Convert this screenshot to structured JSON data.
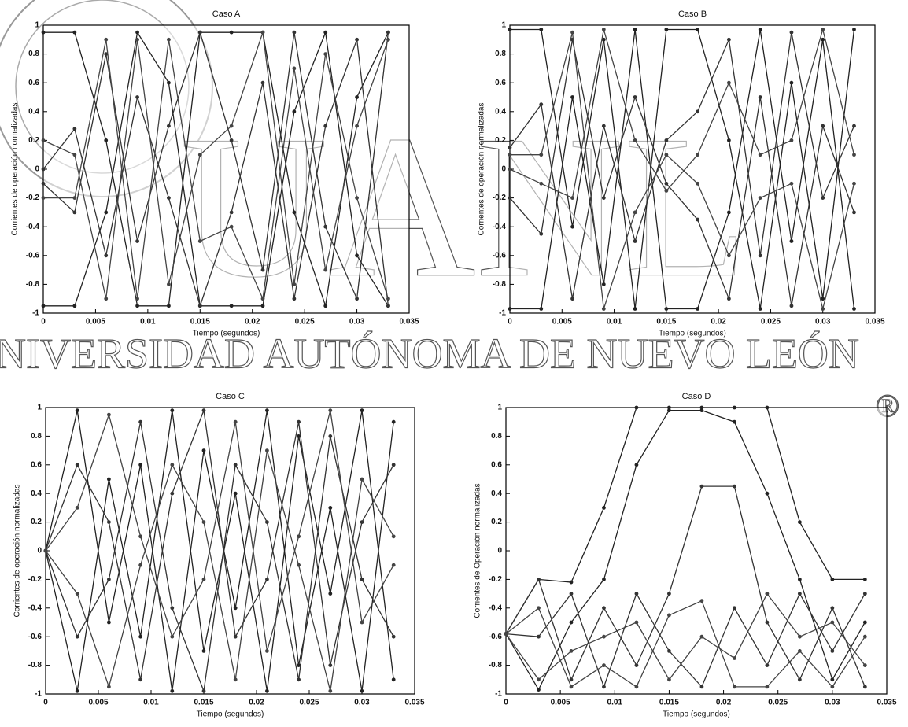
{
  "watermark": {
    "big": "UANL",
    "line": "NIVERSIDAD AUTÓNOMA DE NUEVO LEÓN",
    "mark": "®"
  },
  "chart_data": [
    {
      "type": "line",
      "title": "Caso A",
      "x_label": "Tiempo (segundos)",
      "y_label": "Corrientes de operación normalizadas",
      "x": [
        0,
        0.003,
        0.006,
        0.009,
        0.012,
        0.015,
        0.018,
        0.021,
        0.024,
        0.027,
        0.03,
        0.033
      ],
      "xlim": [
        0,
        0.035
      ],
      "xticks": [
        0,
        0.005,
        0.01,
        0.015,
        0.02,
        0.025,
        0.03,
        0.035
      ],
      "ylim": [
        -1,
        1
      ],
      "yticks": [
        -1,
        -0.8,
        -0.6,
        -0.4,
        -0.2,
        0,
        0.2,
        0.4,
        0.6,
        0.8,
        1
      ],
      "series": [
        {
          "color": "#222",
          "values": [
            0.95,
            0.95,
            0.2,
            -0.95,
            -0.95,
            0.95,
            0.95,
            0.95,
            -0.3,
            -0.95,
            0.5,
            0.95
          ]
        },
        {
          "color": "#222",
          "values": [
            -0.95,
            -0.95,
            -0.3,
            0.95,
            0.6,
            -0.95,
            -0.95,
            -0.95,
            0.4,
            0.95,
            -0.6,
            -0.95
          ]
        },
        {
          "color": "#333",
          "values": [
            0,
            0.28,
            -0.6,
            0.5,
            -0.2,
            -0.95,
            -0.3,
            0.6,
            -0.9,
            0.3,
            0.9,
            -0.95
          ]
        },
        {
          "color": "#333",
          "values": [
            -0.1,
            -0.3,
            0.8,
            -0.5,
            0.3,
            0.95,
            0.2,
            -0.7,
            0.95,
            -0.4,
            -0.9,
            0.95
          ]
        },
        {
          "color": "#444",
          "values": [
            0.2,
            0.1,
            -0.9,
            0.9,
            -0.8,
            0.1,
            0.3,
            0.95,
            -0.8,
            0.8,
            -0.2,
            -0.9
          ]
        },
        {
          "color": "#444",
          "values": [
            -0.2,
            -0.2,
            0.9,
            -0.9,
            0.9,
            -0.5,
            -0.4,
            -0.9,
            0.7,
            -0.7,
            0.3,
            0.9
          ]
        }
      ]
    },
    {
      "type": "line",
      "title": "Caso B",
      "x_label": "Tiempo (segundos)",
      "y_label": "Corrientes de operación normalizadas",
      "x": [
        0,
        0.003,
        0.006,
        0.009,
        0.012,
        0.015,
        0.018,
        0.021,
        0.024,
        0.027,
        0.03,
        0.033
      ],
      "xlim": [
        0,
        0.035
      ],
      "xticks": [
        0,
        0.005,
        0.01,
        0.015,
        0.02,
        0.025,
        0.03,
        0.035
      ],
      "ylim": [
        -1,
        1
      ],
      "yticks": [
        -1,
        -0.8,
        -0.6,
        -0.4,
        -0.2,
        0,
        0.2,
        0.4,
        0.6,
        0.8,
        1
      ],
      "series": [
        {
          "color": "#222",
          "values": [
            0.97,
            0.97,
            -0.4,
            0.9,
            -0.97,
            0.97,
            0.97,
            0.2,
            -0.97,
            0.6,
            -0.9,
            0.97
          ]
        },
        {
          "color": "#222",
          "values": [
            -0.97,
            -0.97,
            0.5,
            -0.8,
            0.97,
            -0.97,
            -0.97,
            -0.3,
            0.97,
            -0.5,
            0.9,
            -0.97
          ]
        },
        {
          "color": "#333",
          "values": [
            0.15,
            0.45,
            -0.9,
            0.3,
            -0.5,
            0.2,
            0.4,
            0.9,
            -0.6,
            0.95,
            -0.2,
            0.3
          ]
        },
        {
          "color": "#333",
          "values": [
            -0.2,
            -0.45,
            0.9,
            -0.2,
            0.5,
            -0.1,
            -0.35,
            -0.9,
            0.5,
            -0.95,
            0.3,
            -0.3
          ]
        },
        {
          "color": "#444",
          "values": [
            0,
            -0.1,
            -0.2,
            0.97,
            0.2,
            -0.15,
            0.1,
            0.6,
            0.1,
            0.2,
            0.97,
            0.1
          ]
        },
        {
          "color": "#444",
          "values": [
            0.1,
            0.1,
            0.95,
            -0.97,
            -0.3,
            0.1,
            -0.1,
            -0.6,
            -0.2,
            -0.1,
            -0.97,
            -0.1
          ]
        }
      ]
    },
    {
      "type": "line",
      "title": "Caso C",
      "x_label": "Tiempo (segundos)",
      "y_label": "Corrientes de operación normalizadas",
      "x": [
        0,
        0.003,
        0.006,
        0.009,
        0.012,
        0.015,
        0.018,
        0.021,
        0.024,
        0.027,
        0.03,
        0.033
      ],
      "xlim": [
        0,
        0.035
      ],
      "xticks": [
        0,
        0.005,
        0.01,
        0.015,
        0.02,
        0.025,
        0.03,
        0.035
      ],
      "ylim": [
        -1,
        1
      ],
      "yticks": [
        -1,
        -0.8,
        -0.6,
        -0.4,
        -0.2,
        0,
        0.2,
        0.4,
        0.6,
        0.8,
        1
      ],
      "series": [
        {
          "color": "#222",
          "values": [
            0,
            0.98,
            -0.5,
            0.6,
            -0.98,
            0.7,
            -0.4,
            0.98,
            -0.8,
            0.3,
            -0.98,
            0.9
          ]
        },
        {
          "color": "#222",
          "values": [
            0,
            -0.98,
            0.5,
            -0.6,
            0.98,
            -0.7,
            0.4,
            -0.98,
            0.8,
            -0.3,
            0.98,
            -0.9
          ]
        },
        {
          "color": "#333",
          "values": [
            0,
            0.6,
            0.2,
            -0.9,
            0.4,
            0.98,
            -0.6,
            -0.2,
            0.9,
            -0.8,
            0.2,
            0.6
          ]
        },
        {
          "color": "#333",
          "values": [
            0,
            -0.6,
            -0.2,
            0.9,
            -0.4,
            -0.98,
            0.6,
            0.2,
            -0.9,
            0.8,
            -0.2,
            -0.6
          ]
        },
        {
          "color": "#444",
          "values": [
            0,
            0.3,
            0.95,
            0.1,
            -0.6,
            -0.2,
            0.9,
            -0.7,
            0.1,
            0.98,
            -0.5,
            -0.1
          ]
        },
        {
          "color": "#444",
          "values": [
            0,
            -0.3,
            -0.95,
            -0.1,
            0.6,
            0.2,
            -0.9,
            0.7,
            -0.1,
            -0.98,
            0.5,
            0.1
          ]
        }
      ]
    },
    {
      "type": "line",
      "title": "Caso D",
      "x_label": "Tiempo (segundos)",
      "y_label": "Corrientes de Operación normalizadas",
      "x": [
        0,
        0.003,
        0.006,
        0.009,
        0.012,
        0.015,
        0.018,
        0.021,
        0.024,
        0.027,
        0.03,
        0.033
      ],
      "xlim": [
        0,
        0.035
      ],
      "xticks": [
        0,
        0.005,
        0.01,
        0.015,
        0.02,
        0.025,
        0.03,
        0.035
      ],
      "ylim": [
        -1,
        1
      ],
      "yticks": [
        -1,
        -0.8,
        -0.6,
        -0.4,
        -0.2,
        0,
        0.2,
        0.4,
        0.6,
        0.8,
        1
      ],
      "series": [
        {
          "color": "#222",
          "values": [
            -0.58,
            -0.2,
            -0.22,
            0.3,
            1,
            1,
            1,
            1,
            1,
            0.2,
            -0.2,
            -0.2
          ]
        },
        {
          "color": "#222",
          "values": [
            -0.58,
            -0.97,
            -0.5,
            -0.2,
            0.6,
            0.98,
            0.98,
            0.9,
            0.4,
            -0.2,
            -0.9,
            -0.5
          ]
        },
        {
          "color": "#333",
          "values": [
            -0.58,
            -0.2,
            -0.9,
            -0.4,
            -0.8,
            -0.3,
            0.45,
            0.45,
            -0.5,
            -0.9,
            -0.4,
            -0.95
          ]
        },
        {
          "color": "#333",
          "values": [
            -0.58,
            -0.6,
            -0.3,
            -0.95,
            -0.3,
            -0.7,
            -0.95,
            -0.4,
            -0.8,
            -0.3,
            -0.7,
            -0.3
          ]
        },
        {
          "color": "#444",
          "values": [
            -0.58,
            -0.9,
            -0.7,
            -0.6,
            -0.5,
            -0.9,
            -0.6,
            -0.75,
            -0.3,
            -0.6,
            -0.5,
            -0.8
          ]
        },
        {
          "color": "#444",
          "values": [
            -0.58,
            -0.4,
            -0.95,
            -0.8,
            -0.95,
            -0.45,
            -0.35,
            -0.95,
            -0.95,
            -0.7,
            -0.95,
            -0.6
          ]
        }
      ]
    }
  ]
}
